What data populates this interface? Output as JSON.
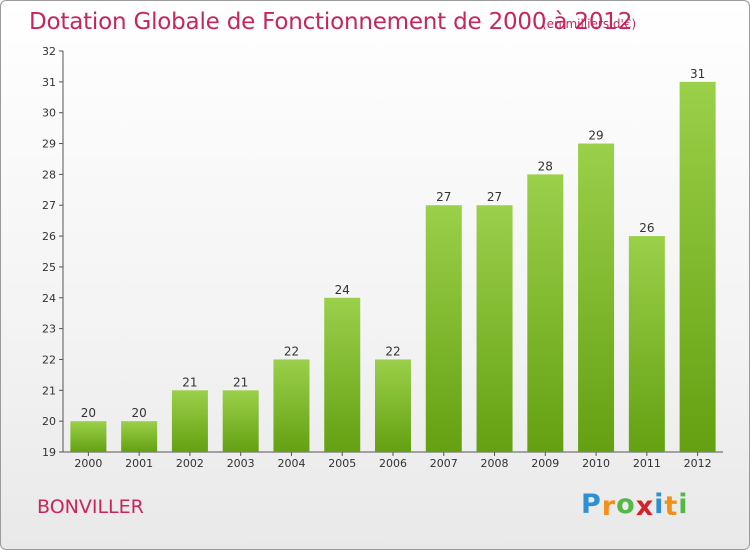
{
  "chart_data": {
    "type": "bar",
    "title": "Dotation Globale de Fonctionnement de 2000 à 2012",
    "subtitle": "(en milliers d'€)",
    "categories": [
      "2000",
      "2001",
      "2002",
      "2003",
      "2004",
      "2005",
      "2006",
      "2007",
      "2008",
      "2009",
      "2010",
      "2011",
      "2012"
    ],
    "values": [
      20,
      20,
      21,
      21,
      22,
      24,
      22,
      27,
      27,
      28,
      29,
      26,
      31
    ],
    "ylim": [
      19,
      32
    ],
    "yticks": [
      19,
      20,
      21,
      22,
      23,
      24,
      25,
      26,
      27,
      28,
      29,
      30,
      31,
      32
    ],
    "grid": false,
    "colors": {
      "bar_light": "#9bd04a",
      "bar_dark": "#64a012",
      "text_accent": "#c8245e"
    }
  },
  "footer": {
    "commune": "BONVILLER",
    "logo_letters": [
      "P",
      "r",
      "o",
      "x",
      "i",
      "t",
      "i"
    ],
    "logo_colors": [
      "#2f8fd4",
      "#f39019",
      "#54b848",
      "#d2232a",
      "#2f8fd4",
      "#f39019",
      "#54b848"
    ]
  }
}
